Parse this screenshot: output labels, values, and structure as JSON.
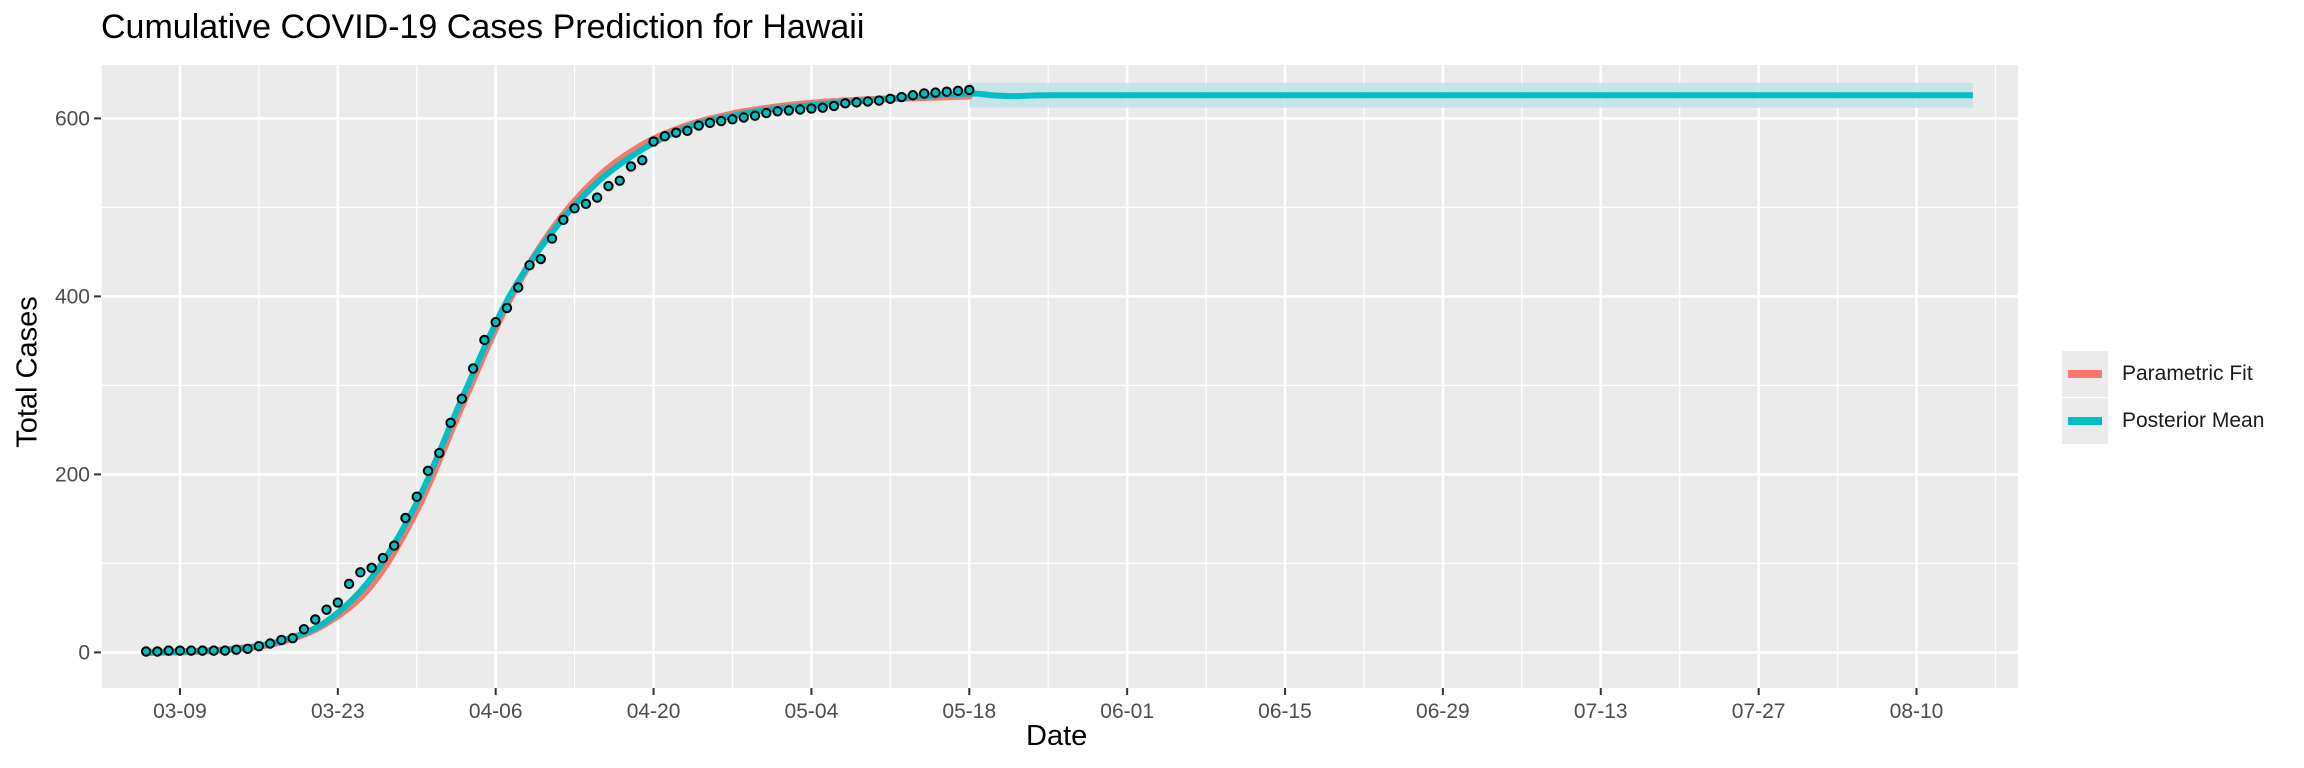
{
  "chart_data": {
    "type": "line",
    "title": "Cumulative COVID-19 Cases Prediction for Hawaii",
    "xlabel": "Date",
    "ylabel": "Total Cases",
    "x_ticks": [
      "03-09",
      "03-23",
      "04-06",
      "04-20",
      "05-04",
      "05-18",
      "06-01",
      "06-15",
      "06-29",
      "07-13",
      "07-27",
      "08-10"
    ],
    "y_ticks": [
      0,
      200,
      400,
      600
    ],
    "ylim": [
      -40,
      660
    ],
    "xlim": [
      "03-02",
      "08-19"
    ],
    "grid": true,
    "legend_position": "right",
    "series": [
      {
        "name": "Parametric Fit",
        "color": "#F8766D",
        "x": [
          "03-06",
          "03-10",
          "03-14",
          "03-18",
          "03-22",
          "03-26",
          "03-30",
          "04-03",
          "04-07",
          "04-11",
          "04-15",
          "04-19",
          "04-23",
          "04-27",
          "05-01",
          "05-05",
          "05-09",
          "05-13",
          "05-18"
        ],
        "y": [
          0,
          1,
          4,
          12,
          33,
          76,
          160,
          277,
          391,
          475,
          533,
          570,
          592,
          605,
          613,
          618,
          621,
          623,
          625
        ]
      },
      {
        "name": "Posterior Mean",
        "color": "#00BFC4",
        "x": [
          "03-06",
          "03-10",
          "03-14",
          "03-18",
          "03-22",
          "03-26",
          "03-30",
          "04-03",
          "04-07",
          "04-11",
          "04-15",
          "04-19",
          "04-23",
          "04-27",
          "05-01",
          "05-05",
          "05-09",
          "05-13",
          "05-18",
          "05-20",
          "05-22",
          "05-25",
          "06-01",
          "06-15",
          "07-01",
          "07-15",
          "08-01",
          "08-15"
        ],
        "y": [
          0,
          1,
          4,
          13,
          35,
          84,
          168,
          285,
          395,
          472,
          528,
          565,
          590,
          603,
          611,
          616,
          620,
          624,
          628,
          626,
          625,
          626,
          626,
          626,
          626,
          626,
          626,
          626
        ],
        "band": {
          "x_start": "05-18",
          "x_end": "08-15",
          "lower": 612,
          "upper": 640
        }
      }
    ],
    "observed": {
      "x": [
        "03-06",
        "03-07",
        "03-08",
        "03-09",
        "03-10",
        "03-11",
        "03-12",
        "03-13",
        "03-14",
        "03-15",
        "03-16",
        "03-17",
        "03-18",
        "03-19",
        "03-20",
        "03-21",
        "03-22",
        "03-23",
        "03-24",
        "03-25",
        "03-26",
        "03-27",
        "03-28",
        "03-29",
        "03-30",
        "03-31",
        "04-01",
        "04-02",
        "04-03",
        "04-04",
        "04-05",
        "04-06",
        "04-07",
        "04-08",
        "04-09",
        "04-10",
        "04-11",
        "04-12",
        "04-13",
        "04-14",
        "04-15",
        "04-16",
        "04-17",
        "04-18",
        "04-19",
        "04-20",
        "04-21",
        "04-22",
        "04-23",
        "04-24",
        "04-25",
        "04-26",
        "04-27",
        "04-28",
        "04-29",
        "04-30",
        "05-01",
        "05-02",
        "05-03",
        "05-04",
        "05-05",
        "05-06",
        "05-07",
        "05-08",
        "05-09",
        "05-10",
        "05-11",
        "05-12",
        "05-13",
        "05-14",
        "05-15",
        "05-16",
        "05-17",
        "05-18"
      ],
      "y": [
        1,
        1,
        2,
        2,
        2,
        2,
        2,
        2,
        3,
        4,
        7,
        10,
        14,
        16,
        26,
        37,
        48,
        56,
        77,
        90,
        95,
        106,
        120,
        151,
        175,
        204,
        224,
        258,
        285,
        319,
        351,
        371,
        387,
        410,
        435,
        442,
        465,
        486,
        499,
        504,
        511,
        524,
        530,
        546,
        553,
        574,
        580,
        584,
        586,
        592,
        595,
        597,
        599,
        601,
        603,
        606,
        608,
        609,
        610,
        611,
        612,
        614,
        617,
        618,
        619,
        620,
        622,
        624,
        626,
        628,
        629,
        630,
        631,
        632
      ]
    }
  }
}
